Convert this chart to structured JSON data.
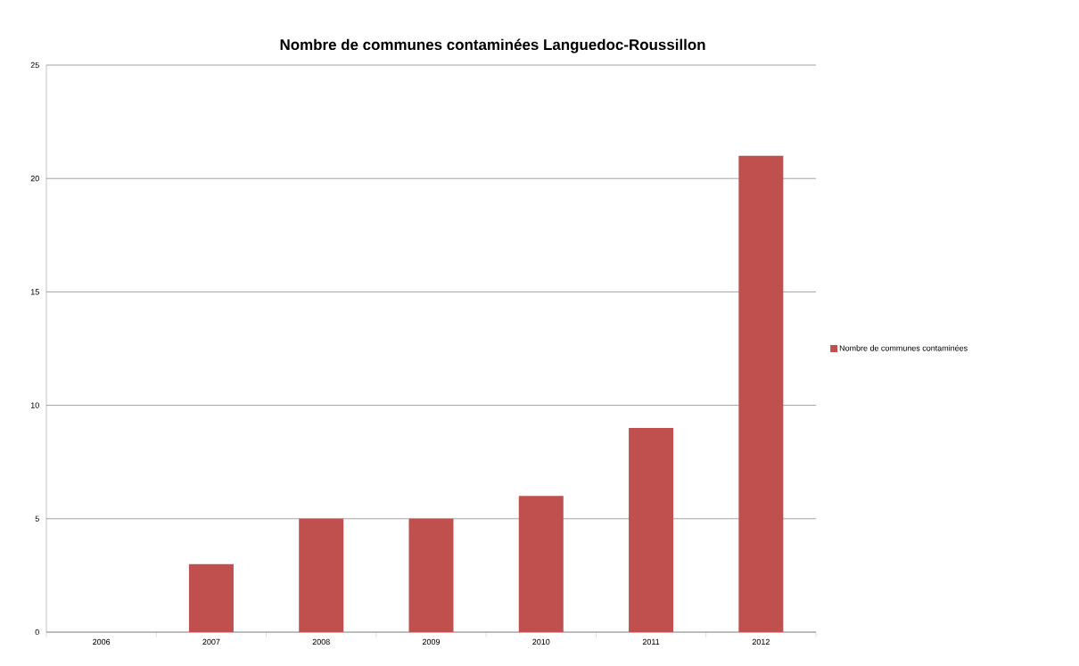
{
  "chart_data": {
    "type": "bar",
    "title": "Nombre de communes contaminées  Languedoc-Roussillon",
    "categories": [
      "2006",
      "2007",
      "2008",
      "2009",
      "2010",
      "2011",
      "2012"
    ],
    "series": [
      {
        "name": "Nombre de communes contaminées",
        "color": "#c0504d",
        "values": [
          0,
          3,
          5,
          5,
          6,
          9,
          21
        ]
      }
    ],
    "ylim": [
      0,
      25
    ],
    "yticks": [
      0,
      5,
      10,
      15,
      20,
      25
    ],
    "grid": "y",
    "legend": "right"
  }
}
